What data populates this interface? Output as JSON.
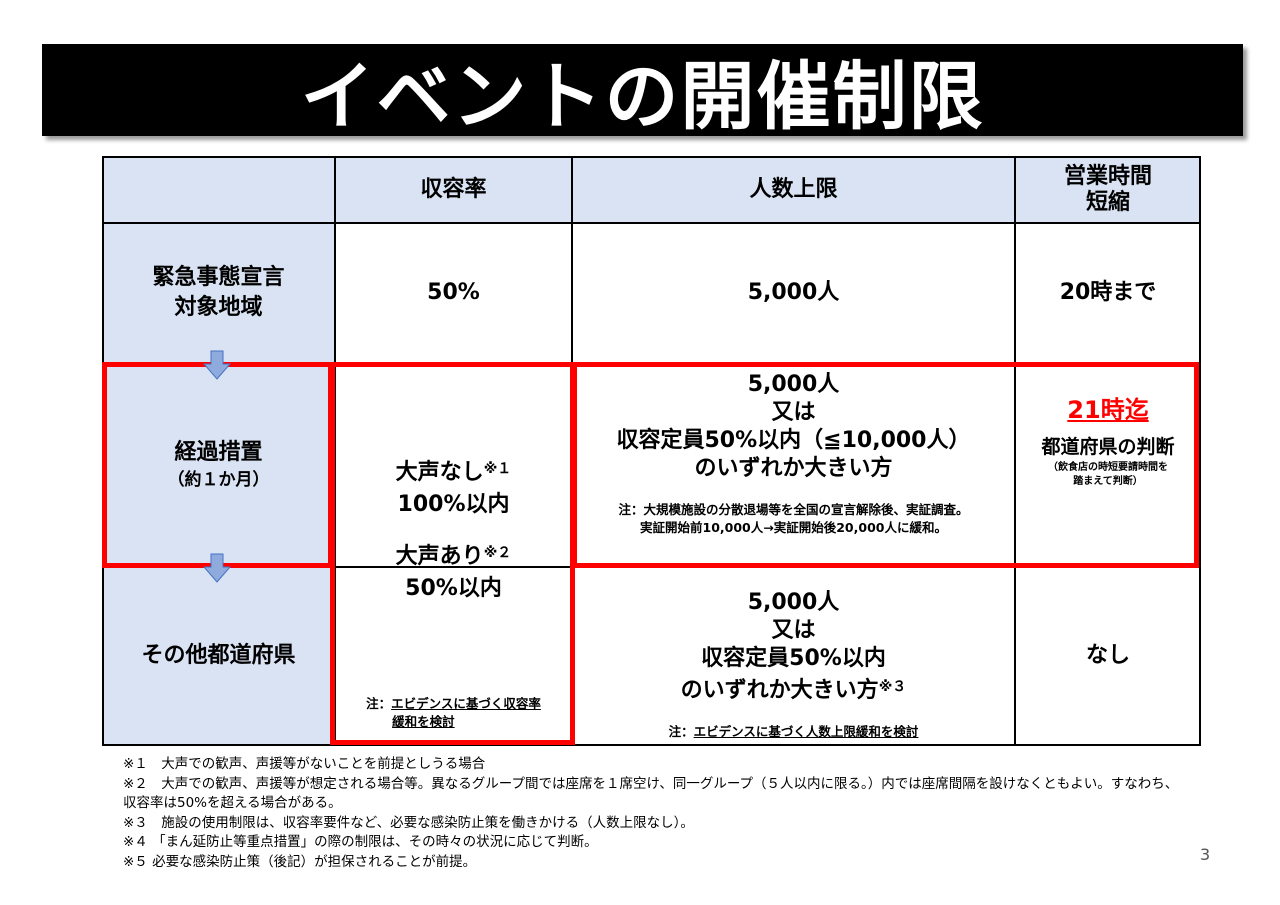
{
  "title": "イベントの開催制限",
  "header": {
    "capacity": "収容率",
    "people_limit": "人数上限",
    "hours_line1": "営業時間",
    "hours_line2": "短縮"
  },
  "row_emergency": {
    "label_line1": "緊急事態宣言",
    "label_line2": "対象地域",
    "capacity": "50%",
    "people": "5,000人",
    "hours": "20時まで"
  },
  "row_transition": {
    "label": "経過措置",
    "sublabel": "（約１か月）",
    "people_line1": "5,000人",
    "people_line2": "又は",
    "people_line3": "収容定員50%以内（≦10,000人）",
    "people_line4": "のいずれか大きい方",
    "people_note_line1": "注：大規模施設の分散退場等を全国の宣言解除後、実証調査。",
    "people_note_line2": "実証開始前10,000人→実証開始後20,000人に緩和。",
    "hours_main": "21時迄",
    "hours_line2": "都道府県の判断",
    "hours_note_line1": "（飲食店の時短要請時間を",
    "hours_note_line2": "踏まえて判断）"
  },
  "capacity_merged": {
    "quiet": "大声なし",
    "quiet_mark": "※１",
    "quiet_value": "100%以内",
    "loud": "大声あり",
    "loud_mark": "※２",
    "loud_value": "50%以内",
    "note_prefix": "注：",
    "note_line1": "エビデンスに基づく収容率",
    "note_line2": "緩和を検討"
  },
  "row_other": {
    "label": "その他都道府県",
    "people_line1": "5,000人",
    "people_line2": "又は",
    "people_line3": "収容定員50%以内",
    "people_line4": "のいずれか大きい方",
    "people_mark": "※３",
    "note_prefix": "注：",
    "note": "エビデンスに基づく人数上限緩和を検討",
    "hours": "なし"
  },
  "footnotes": [
    "※１　大声での歓声、声援等がないことを前提としうる場合",
    "※２　大声での歓声、声援等が想定される場合等。異なるグループ間では座席を１席空け、同一グループ（５人以内に限る。）内では座席間隔を設けなくともよい。すなわち、",
    "収容率は50%を超える場合がある。",
    "※３　施設の使用制限は、収容率要件など、必要な感染防止策を働きかける（人数上限なし）。",
    "※４ 「まん延防止等重点措置」の際の制限は、その時々の状況に応じて判断。",
    "※５  必要な感染防止策（後記）が担保されることが前提。"
  ],
  "page_number": "3",
  "colors": {
    "header_bg": "#dae3f3",
    "red_box": "#ff0000",
    "red_text": "#ff0000",
    "arrow_fill": "#8faadc"
  }
}
